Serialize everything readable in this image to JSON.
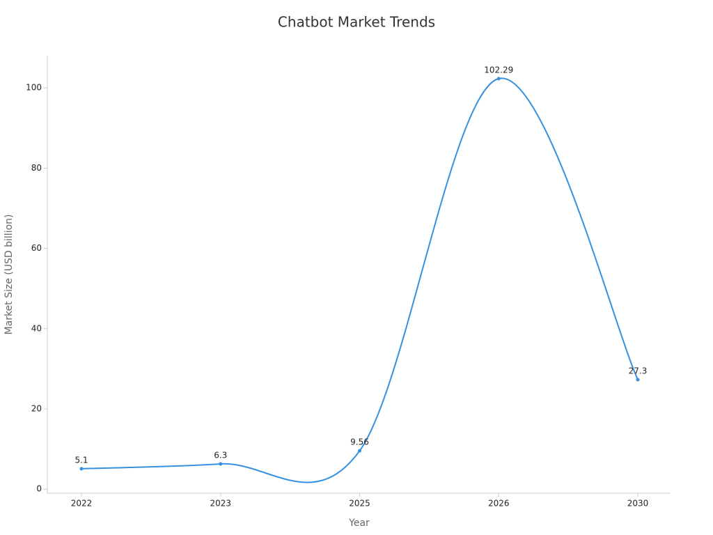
{
  "chart_data": {
    "type": "line",
    "title": "Chatbot Market Trends",
    "x_label": "Year",
    "y_label": "Market Size (USD billion)",
    "categories": [
      "2022",
      "2023",
      "2025",
      "2026",
      "2030"
    ],
    "values": [
      5.1,
      6.3,
      9.56,
      102.29,
      27.3
    ],
    "color": "#3591e0",
    "ylim": [
      -1,
      108
    ],
    "yticks": [
      0,
      20,
      40,
      60,
      80,
      100
    ],
    "smooth": true,
    "grid": false
  }
}
